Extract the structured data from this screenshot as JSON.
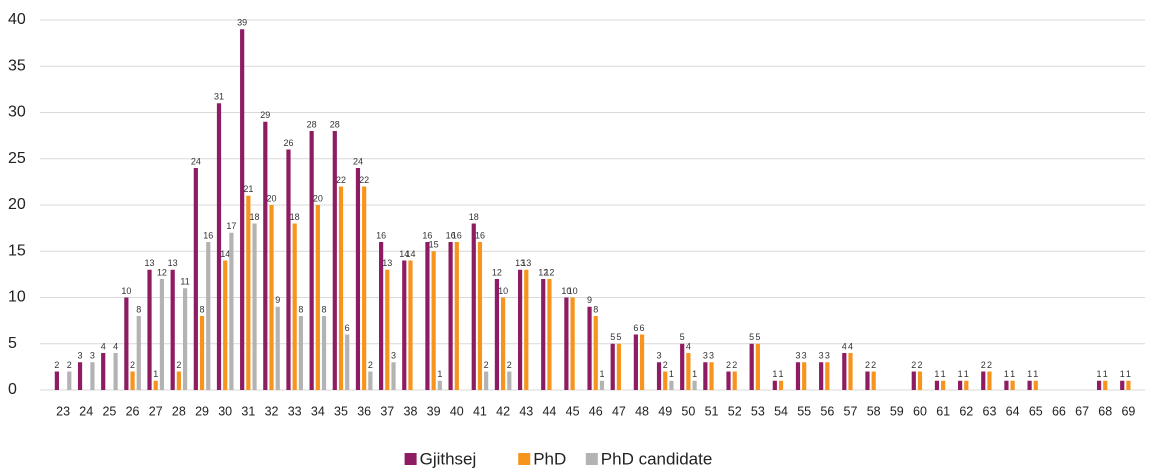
{
  "chart_data": {
    "type": "bar",
    "categories": [
      "23",
      "24",
      "25",
      "26",
      "27",
      "28",
      "29",
      "30",
      "31",
      "32",
      "33",
      "34",
      "35",
      "36",
      "37",
      "38",
      "39",
      "40",
      "41",
      "42",
      "43",
      "44",
      "45",
      "46",
      "47",
      "48",
      "49",
      "50",
      "51",
      "52",
      "53",
      "54",
      "55",
      "56",
      "57",
      "58",
      "59",
      "60",
      "61",
      "62",
      "63",
      "64",
      "65",
      "66",
      "67",
      "68",
      "69"
    ],
    "series": [
      {
        "name": "Gjithsej",
        "color": "#8e1c62",
        "values": [
          2,
          3,
          4,
          10,
          13,
          13,
          24,
          31,
          39,
          29,
          26,
          28,
          28,
          24,
          16,
          14,
          16,
          16,
          18,
          12,
          13,
          12,
          10,
          9,
          5,
          6,
          3,
          5,
          3,
          2,
          5,
          1,
          3,
          3,
          4,
          2,
          null,
          2,
          1,
          1,
          2,
          1,
          1,
          null,
          null,
          1,
          1
        ]
      },
      {
        "name": "PhD",
        "color": "#f7941d",
        "values": [
          null,
          null,
          null,
          2,
          1,
          2,
          8,
          14,
          21,
          20,
          18,
          20,
          22,
          22,
          13,
          14,
          15,
          16,
          16,
          10,
          13,
          12,
          10,
          8,
          5,
          6,
          2,
          4,
          3,
          2,
          5,
          1,
          3,
          3,
          4,
          2,
          null,
          2,
          1,
          1,
          2,
          1,
          1,
          null,
          null,
          1,
          1
        ]
      },
      {
        "name": "PhD candidate",
        "color": "#b3b3b3",
        "values": [
          2,
          3,
          4,
          8,
          12,
          11,
          16,
          17,
          18,
          9,
          8,
          8,
          6,
          2,
          3,
          null,
          1,
          null,
          2,
          2,
          null,
          null,
          null,
          1,
          null,
          null,
          1,
          1,
          null,
          null,
          null,
          null,
          null,
          null,
          null,
          null,
          null,
          null,
          null,
          null,
          null,
          null,
          null,
          null,
          null,
          null,
          null
        ]
      }
    ],
    "ylim": [
      0,
      40
    ],
    "yticks": [
      0,
      5,
      10,
      15,
      20,
      25,
      30,
      35,
      40
    ],
    "grid": true,
    "legend": "bottom"
  }
}
